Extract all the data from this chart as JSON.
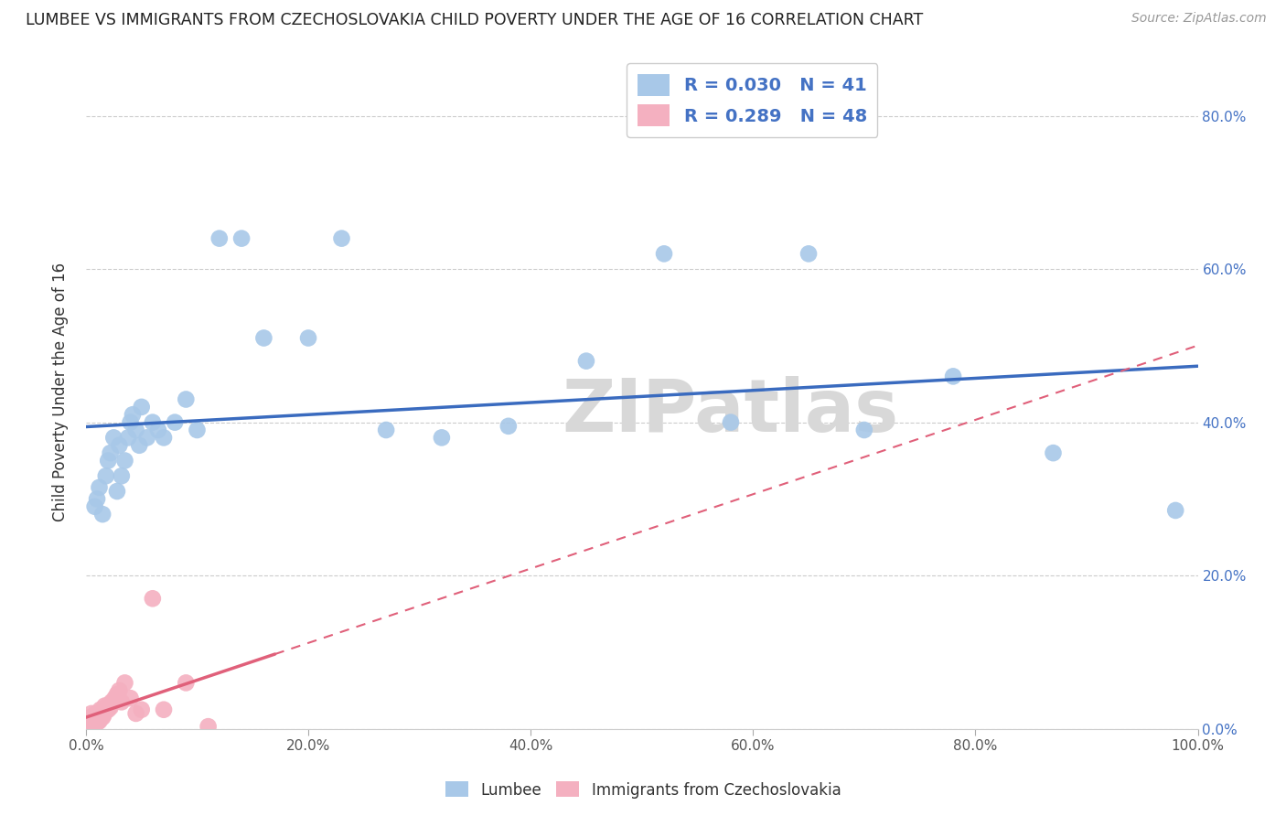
{
  "title": "LUMBEE VS IMMIGRANTS FROM CZECHOSLOVAKIA CHILD POVERTY UNDER THE AGE OF 16 CORRELATION CHART",
  "source": "Source: ZipAtlas.com",
  "ylabel_label": "Child Poverty Under the Age of 16",
  "lumbee_R": 0.03,
  "lumbee_N": 41,
  "czech_R": 0.289,
  "czech_N": 48,
  "lumbee_color": "#a8c8e8",
  "lumbee_line_color": "#3a6bbf",
  "czech_color": "#f4b0c0",
  "czech_line_color": "#e0607a",
  "watermark": "ZIPatlas",
  "background_color": "#ffffff",
  "lumbee_x": [
    0.008,
    0.01,
    0.012,
    0.015,
    0.018,
    0.02,
    0.022,
    0.025,
    0.028,
    0.03,
    0.032,
    0.035,
    0.038,
    0.04,
    0.042,
    0.045,
    0.048,
    0.05,
    0.055,
    0.06,
    0.065,
    0.07,
    0.08,
    0.09,
    0.1,
    0.12,
    0.14,
    0.16,
    0.2,
    0.23,
    0.27,
    0.32,
    0.38,
    0.45,
    0.52,
    0.58,
    0.65,
    0.7,
    0.78,
    0.87,
    0.98
  ],
  "lumbee_y": [
    0.29,
    0.3,
    0.315,
    0.28,
    0.33,
    0.35,
    0.36,
    0.38,
    0.31,
    0.37,
    0.33,
    0.35,
    0.38,
    0.4,
    0.41,
    0.39,
    0.37,
    0.42,
    0.38,
    0.4,
    0.39,
    0.38,
    0.4,
    0.43,
    0.39,
    0.64,
    0.64,
    0.51,
    0.51,
    0.64,
    0.39,
    0.38,
    0.395,
    0.48,
    0.62,
    0.4,
    0.62,
    0.39,
    0.46,
    0.36,
    0.285
  ],
  "czech_x": [
    0.002,
    0.003,
    0.004,
    0.004,
    0.005,
    0.005,
    0.006,
    0.006,
    0.007,
    0.007,
    0.008,
    0.008,
    0.009,
    0.009,
    0.01,
    0.01,
    0.011,
    0.011,
    0.012,
    0.012,
    0.013,
    0.013,
    0.014,
    0.015,
    0.015,
    0.016,
    0.017,
    0.017,
    0.018,
    0.019,
    0.02,
    0.021,
    0.022,
    0.023,
    0.025,
    0.026,
    0.027,
    0.028,
    0.03,
    0.032,
    0.035,
    0.04,
    0.045,
    0.05,
    0.06,
    0.07,
    0.09,
    0.11
  ],
  "czech_y": [
    0.005,
    0.01,
    0.005,
    0.015,
    0.01,
    0.02,
    0.008,
    0.015,
    0.005,
    0.012,
    0.01,
    0.018,
    0.012,
    0.02,
    0.008,
    0.015,
    0.01,
    0.02,
    0.01,
    0.018,
    0.015,
    0.025,
    0.018,
    0.015,
    0.025,
    0.018,
    0.022,
    0.03,
    0.025,
    0.03,
    0.025,
    0.03,
    0.028,
    0.035,
    0.035,
    0.04,
    0.038,
    0.045,
    0.05,
    0.035,
    0.06,
    0.04,
    0.02,
    0.025,
    0.17,
    0.025,
    0.06,
    0.003
  ],
  "xlim": [
    0.0,
    1.0
  ],
  "ylim": [
    0.0,
    0.88
  ],
  "xticks": [
    0.0,
    0.2,
    0.4,
    0.6,
    0.8,
    1.0
  ],
  "yticks": [
    0.0,
    0.2,
    0.4,
    0.6,
    0.8
  ],
  "xtick_labels": [
    "0.0%",
    "20.0%",
    "40.0%",
    "60.0%",
    "80.0%",
    "100.0%"
  ],
  "ytick_labels": [
    "0.0%",
    "20.0%",
    "40.0%",
    "60.0%",
    "80.0%"
  ]
}
